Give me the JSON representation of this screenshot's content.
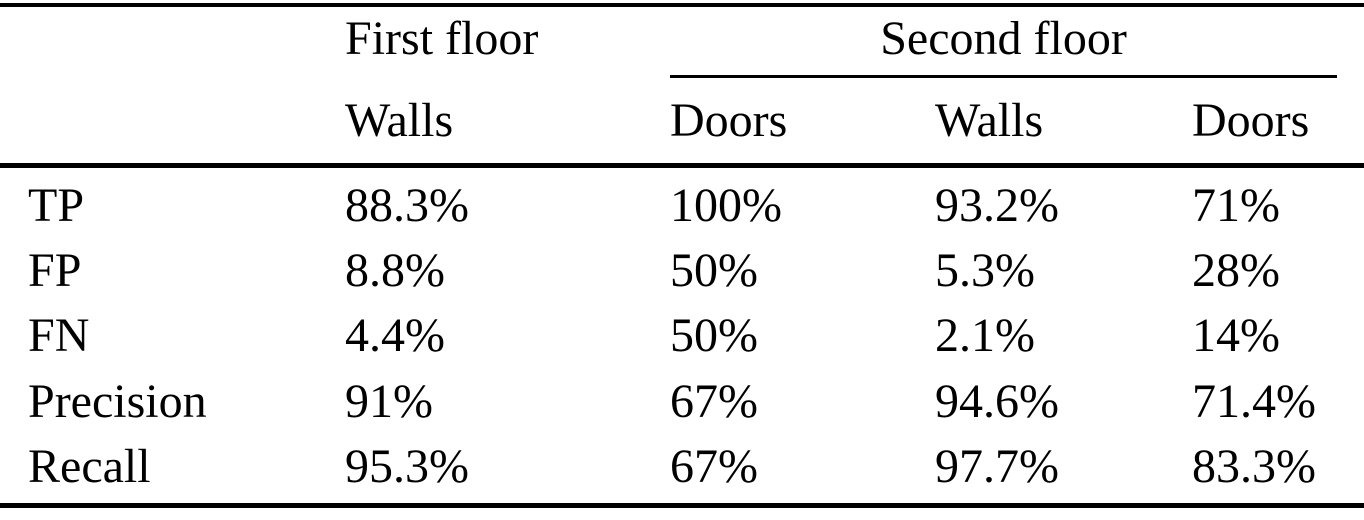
{
  "table": {
    "col_groups": [
      {
        "label": "First floor"
      },
      {
        "label": "Second floor"
      }
    ],
    "columns": [
      "Walls",
      "Doors",
      "Walls",
      "Doors"
    ],
    "rows": [
      {
        "label": "TP",
        "values": [
          "88.3%",
          "100%",
          "93.2%",
          "71%"
        ]
      },
      {
        "label": "FP",
        "values": [
          "8.8%",
          "50%",
          "5.3%",
          "28%"
        ]
      },
      {
        "label": "FN",
        "values": [
          "4.4%",
          "50%",
          "2.1%",
          "14%"
        ]
      },
      {
        "label": "Precision",
        "values": [
          "91%",
          "67%",
          "94.6%",
          "71.4%"
        ]
      },
      {
        "label": "Recall",
        "values": [
          "95.3%",
          "67%",
          "97.7%",
          "83.3%"
        ]
      }
    ],
    "colors": {
      "text": "#000000",
      "background": "#ffffff",
      "rule": "#000000"
    }
  },
  "chart_data": {
    "type": "table",
    "title": "",
    "column_groups": [
      {
        "label": "First floor",
        "columns": [
          "Walls"
        ]
      },
      {
        "label": "Second floor",
        "columns": [
          "Doors",
          "Walls",
          "Doors"
        ]
      }
    ],
    "row_labels": [
      "TP",
      "FP",
      "FN",
      "Precision",
      "Recall"
    ],
    "cells": [
      [
        "88.3%",
        "100%",
        "93.2%",
        "71%"
      ],
      [
        "8.8%",
        "50%",
        "5.3%",
        "28%"
      ],
      [
        "4.4%",
        "50%",
        "2.1%",
        "14%"
      ],
      [
        "91%",
        "67%",
        "94.6%",
        "71.4%"
      ],
      [
        "95.3%",
        "67%",
        "97.7%",
        "83.3%"
      ]
    ]
  }
}
